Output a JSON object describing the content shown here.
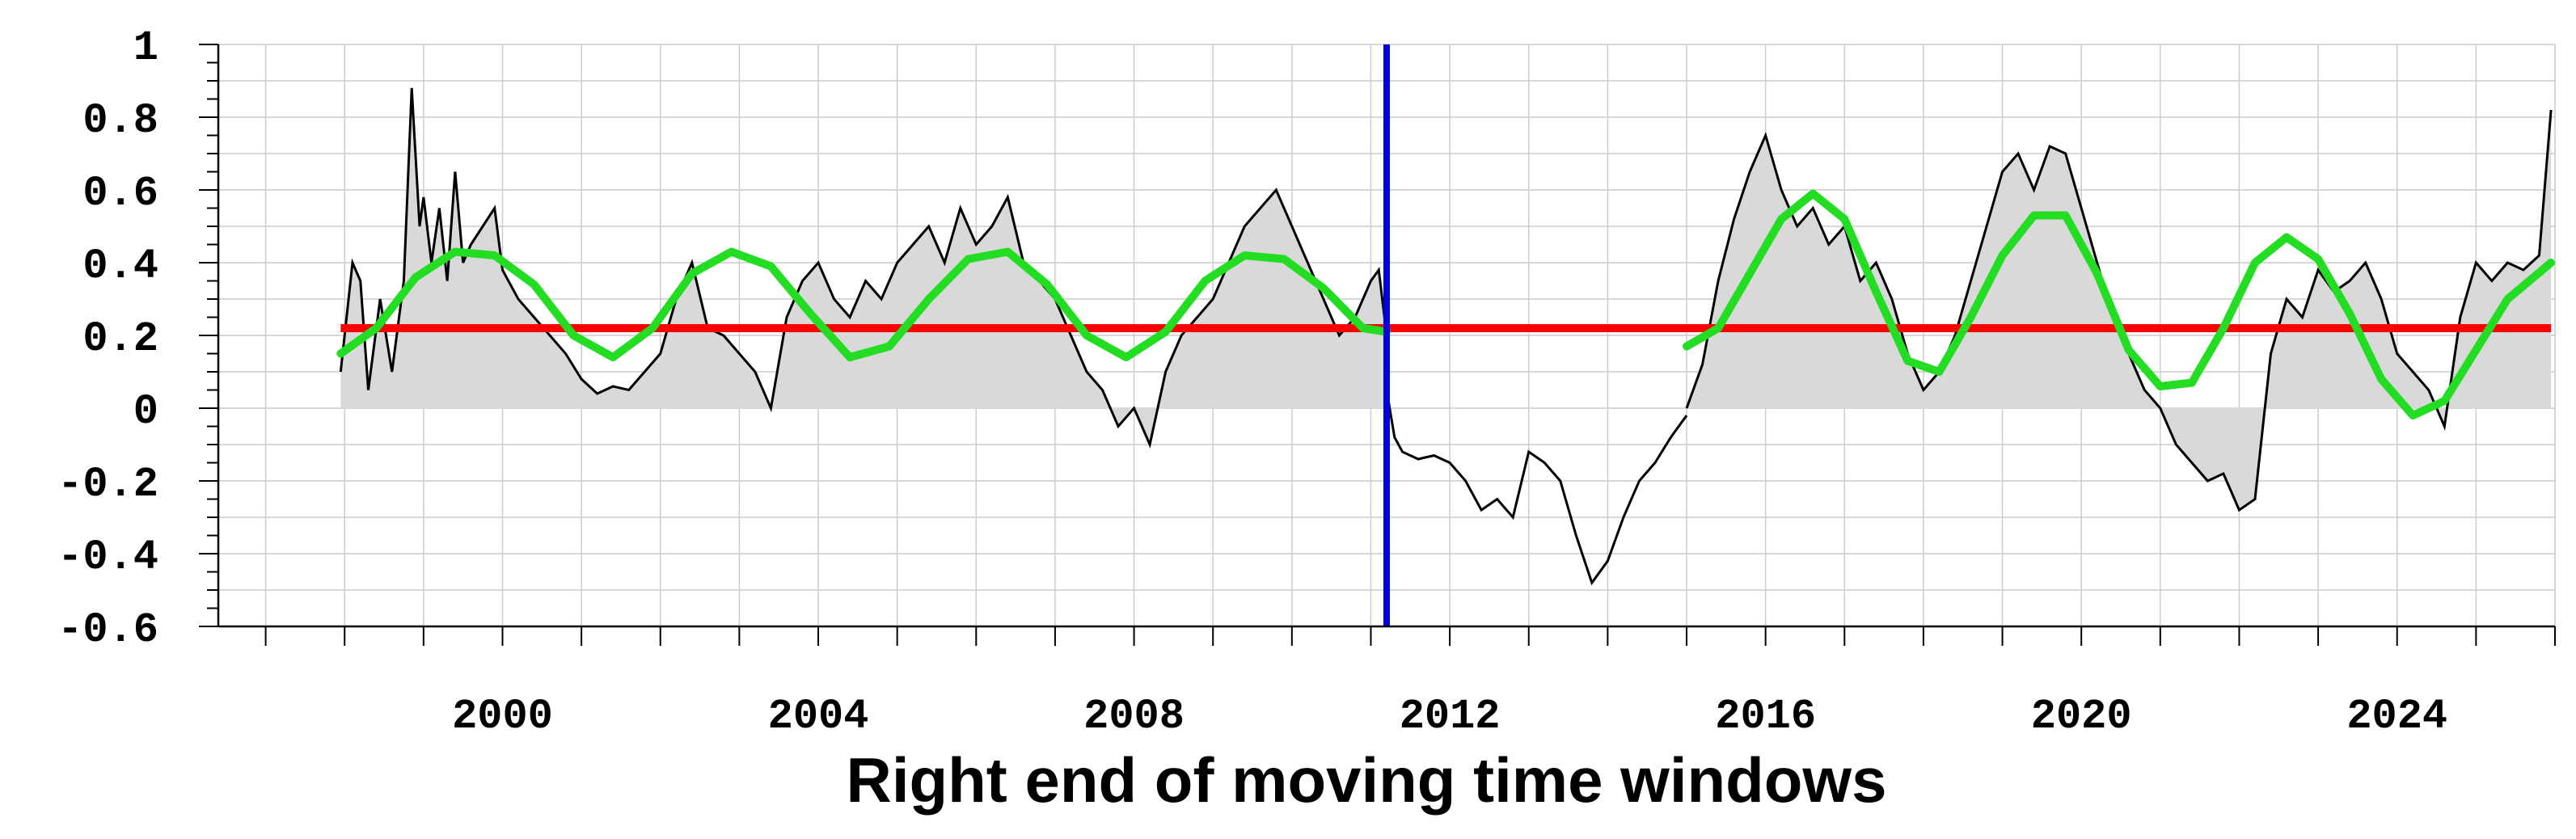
{
  "chart_data": {
    "type": "line",
    "title": "",
    "xlabel": "Right end of moving time windows",
    "ylabel": "",
    "xlim": [
      1996.4,
      2026.0
    ],
    "ylim": [
      -0.6,
      1.0
    ],
    "x_ticks": [
      2000,
      2004,
      2008,
      2012,
      2016,
      2020,
      2024
    ],
    "y_ticks": [
      1,
      0.8,
      0.6,
      0.4,
      0.2,
      0,
      -0.2,
      -0.4,
      -0.6
    ],
    "y_tick_labels": [
      "1",
      "0.8",
      "0.6",
      "0.4",
      "0.2",
      "0",
      "-0.2",
      "-0.4",
      "-0.6"
    ],
    "grid": true,
    "legend": "none",
    "colors": {
      "series": "#000000",
      "fill": "#d9d9d9",
      "mean": "#ff0000",
      "sinusoid": "#22dd22",
      "marker": "#0000dd",
      "grid": "#cccccc"
    },
    "series": [
      {
        "kind": "black-line-gray-fill",
        "x": [
          1997.95,
          1998.1,
          1998.2,
          1998.3,
          1998.45,
          1998.6,
          1998.75,
          1998.85,
          1998.95,
          1999.0,
          1999.1,
          1999.2,
          1999.3,
          1999.4,
          1999.5,
          1999.6,
          1999.75,
          1999.9,
          2000.0,
          2000.2,
          2000.4,
          2000.6,
          2000.8,
          2001.0,
          2001.2,
          2001.4,
          2001.6,
          2001.8,
          2002.0,
          2002.2,
          2002.4,
          2002.6,
          2002.8,
          2003.0,
          2003.2,
          2003.4,
          2003.6,
          2003.8,
          2004.0,
          2004.2,
          2004.4,
          2004.6,
          2004.8,
          2005.0,
          2005.2,
          2005.4,
          2005.6,
          2005.8,
          2006.0,
          2006.2,
          2006.4,
          2006.6,
          2006.8,
          2007.0,
          2007.2,
          2007.4,
          2007.6,
          2007.8,
          2008.0,
          2008.2,
          2008.4,
          2008.6,
          2008.8,
          2009.0,
          2009.2,
          2009.4,
          2009.6,
          2009.8,
          2010.0,
          2010.2,
          2010.4,
          2010.6,
          2010.8,
          2011.0,
          2011.1,
          2011.2
        ],
        "y": [
          0.1,
          0.4,
          0.35,
          0.05,
          0.3,
          0.1,
          0.35,
          0.88,
          0.5,
          0.58,
          0.4,
          0.55,
          0.35,
          0.65,
          0.4,
          0.45,
          0.5,
          0.55,
          0.38,
          0.3,
          0.25,
          0.2,
          0.15,
          0.08,
          0.04,
          0.06,
          0.05,
          0.1,
          0.15,
          0.3,
          0.4,
          0.22,
          0.2,
          0.15,
          0.1,
          0.0,
          0.25,
          0.35,
          0.4,
          0.3,
          0.25,
          0.35,
          0.3,
          0.4,
          0.45,
          0.5,
          0.4,
          0.55,
          0.45,
          0.5,
          0.58,
          0.4,
          0.35,
          0.3,
          0.2,
          0.1,
          0.05,
          -0.05,
          0.0,
          -0.1,
          0.1,
          0.2,
          0.25,
          0.3,
          0.4,
          0.5,
          0.55,
          0.6,
          0.5,
          0.4,
          0.3,
          0.2,
          0.25,
          0.35,
          0.38,
          0.2
        ]
      },
      {
        "kind": "black-line-no-fill",
        "x": [
          2011.2,
          2011.3,
          2011.4,
          2011.6,
          2011.8,
          2012.0,
          2012.2,
          2012.4,
          2012.6,
          2012.8,
          2013.0,
          2013.2,
          2013.4,
          2013.6,
          2013.8,
          2014.0,
          2014.2,
          2014.4,
          2014.6,
          2014.8,
          2015.0
        ],
        "y": [
          0.05,
          -0.08,
          -0.12,
          -0.14,
          -0.13,
          -0.15,
          -0.2,
          -0.28,
          -0.25,
          -0.3,
          -0.12,
          -0.15,
          -0.2,
          -0.35,
          -0.48,
          -0.42,
          -0.3,
          -0.2,
          -0.15,
          -0.08,
          -0.02
        ]
      },
      {
        "kind": "black-line-gray-fill",
        "x": [
          2015.0,
          2015.2,
          2015.4,
          2015.6,
          2015.8,
          2016.0,
          2016.2,
          2016.4,
          2016.6,
          2016.8,
          2017.0,
          2017.2,
          2017.4,
          2017.6,
          2017.8,
          2018.0,
          2018.2,
          2018.4,
          2018.6,
          2018.8,
          2019.0,
          2019.2,
          2019.4,
          2019.6,
          2019.8,
          2020.0,
          2020.2,
          2020.4,
          2020.6,
          2020.8,
          2021.0,
          2021.2,
          2021.4,
          2021.6,
          2021.8,
          2022.0,
          2022.2,
          2022.4,
          2022.6,
          2022.8,
          2023.0,
          2023.2,
          2023.4,
          2023.6,
          2023.8,
          2024.0,
          2024.2,
          2024.4,
          2024.6,
          2024.8,
          2025.0,
          2025.2,
          2025.4,
          2025.6,
          2025.8,
          2025.95
        ],
        "y": [
          0.0,
          0.12,
          0.35,
          0.52,
          0.65,
          0.75,
          0.6,
          0.5,
          0.55,
          0.45,
          0.5,
          0.35,
          0.4,
          0.3,
          0.15,
          0.05,
          0.1,
          0.2,
          0.35,
          0.5,
          0.65,
          0.7,
          0.6,
          0.72,
          0.7,
          0.55,
          0.4,
          0.25,
          0.15,
          0.05,
          0.0,
          -0.1,
          -0.15,
          -0.2,
          -0.18,
          -0.28,
          -0.25,
          0.15,
          0.3,
          0.25,
          0.38,
          0.32,
          0.35,
          0.4,
          0.3,
          0.15,
          0.1,
          0.05,
          -0.05,
          0.25,
          0.4,
          0.35,
          0.4,
          0.38,
          0.42,
          0.82
        ]
      },
      {
        "kind": "mean-line",
        "x": [
          1997.95,
          2025.95
        ],
        "y": [
          0.22,
          0.22
        ]
      },
      {
        "kind": "sinusoid",
        "x": [
          1997.95,
          1998.4,
          1998.9,
          1999.4,
          1999.9,
          2000.4,
          2000.9,
          2001.4,
          2001.9,
          2002.4,
          2002.9,
          2003.4,
          2003.9,
          2004.4,
          2004.9,
          2005.4,
          2005.9,
          2006.4,
          2006.9,
          2007.4,
          2007.9,
          2008.4,
          2008.9,
          2009.4,
          2009.9,
          2010.4,
          2010.9,
          2011.2
        ],
        "y": [
          0.15,
          0.22,
          0.36,
          0.43,
          0.42,
          0.34,
          0.2,
          0.14,
          0.22,
          0.37,
          0.43,
          0.39,
          0.26,
          0.14,
          0.17,
          0.3,
          0.41,
          0.43,
          0.34,
          0.2,
          0.14,
          0.21,
          0.35,
          0.42,
          0.41,
          0.33,
          0.22,
          0.21
        ]
      },
      {
        "kind": "sinusoid",
        "x": [
          2015.0,
          2015.4,
          2015.8,
          2016.2,
          2016.6,
          2017.0,
          2017.4,
          2017.8,
          2018.2,
          2018.6,
          2019.0,
          2019.4,
          2019.8,
          2020.2,
          2020.6,
          2021.0,
          2021.4,
          2021.8,
          2022.2,
          2022.6,
          2023.0,
          2023.4,
          2023.8,
          2024.2,
          2024.6,
          2025.0,
          2025.4,
          2025.95
        ],
        "y": [
          0.17,
          0.22,
          0.37,
          0.52,
          0.59,
          0.52,
          0.32,
          0.13,
          0.1,
          0.25,
          0.42,
          0.53,
          0.53,
          0.37,
          0.16,
          0.06,
          0.07,
          0.22,
          0.4,
          0.47,
          0.41,
          0.26,
          0.08,
          -0.02,
          0.02,
          0.16,
          0.3,
          0.4
        ]
      },
      {
        "kind": "vertical-marker",
        "x": [
          2011.2,
          2011.2
        ],
        "y": [
          1.0,
          -0.6
        ]
      }
    ]
  }
}
